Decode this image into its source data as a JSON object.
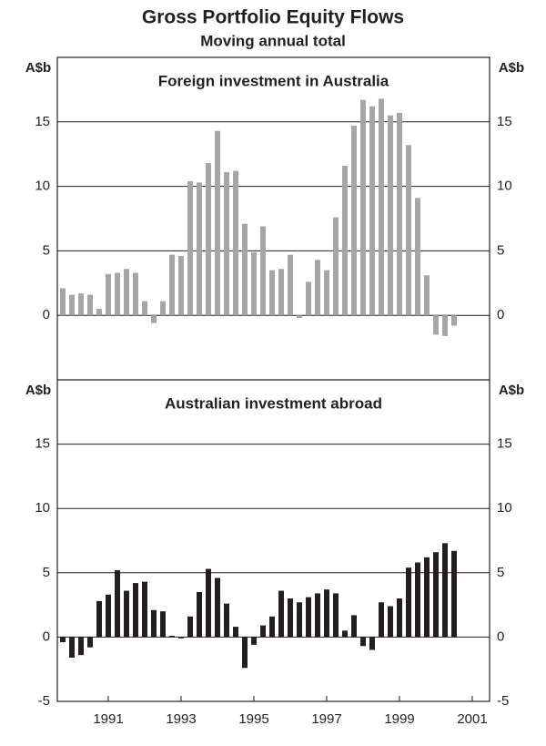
{
  "title": "Gross Portfolio Equity Flows",
  "subtitle": "Moving annual total",
  "chart_data": [
    {
      "type": "bar",
      "title": "Foreign investment in Australia",
      "y_label": "A$b",
      "color": "#a6a6a6",
      "values": [
        2.1,
        1.6,
        1.7,
        1.6,
        0.5,
        3.2,
        3.3,
        3.6,
        3.3,
        1.1,
        -0.6,
        1.1,
        4.7,
        4.6,
        10.4,
        10.3,
        11.8,
        14.3,
        11.1,
        11.2,
        7.1,
        4.9,
        6.9,
        3.5,
        3.6,
        4.7,
        -0.2,
        2.6,
        4.3,
        3.5,
        7.6,
        11.6,
        14.7,
        16.7,
        16.2,
        16.8,
        15.5,
        15.7,
        13.2,
        9.1,
        3.1,
        -1.5,
        -1.6,
        -0.8
      ],
      "ylim": [
        -5,
        20
      ],
      "yticks": [
        0,
        5,
        10,
        15
      ],
      "grid": true
    },
    {
      "type": "bar",
      "title": "Australian investment abroad",
      "y_label": "A$b",
      "color": "#231f20",
      "categories": [
        null,
        null,
        null,
        null,
        null,
        "1991",
        null,
        null,
        null,
        null,
        null,
        null,
        null,
        "1993",
        null,
        null,
        null,
        null,
        null,
        null,
        null,
        "1995",
        null,
        null,
        null,
        null,
        null,
        null,
        null,
        "1997",
        null,
        null,
        null,
        null,
        null,
        null,
        null,
        "1999",
        null,
        null,
        null,
        null,
        null,
        null,
        null,
        "2001"
      ],
      "values": [
        -0.4,
        -1.6,
        -1.4,
        -0.8,
        2.8,
        3.3,
        5.2,
        3.6,
        4.2,
        4.3,
        2.1,
        2.0,
        0.1,
        -0.1,
        1.6,
        3.5,
        5.3,
        4.6,
        2.6,
        0.8,
        -2.4,
        -0.6,
        0.9,
        1.6,
        3.6,
        3.0,
        2.7,
        3.1,
        3.4,
        3.7,
        3.4,
        0.5,
        1.7,
        -0.7,
        -1.0,
        2.7,
        2.4,
        3.0,
        5.4,
        5.8,
        6.2,
        6.6,
        7.3,
        6.7,
        null,
        null
      ],
      "ylim": [
        -5,
        20
      ],
      "yticks": [
        -5,
        0,
        5,
        10,
        15
      ],
      "grid": true
    }
  ]
}
